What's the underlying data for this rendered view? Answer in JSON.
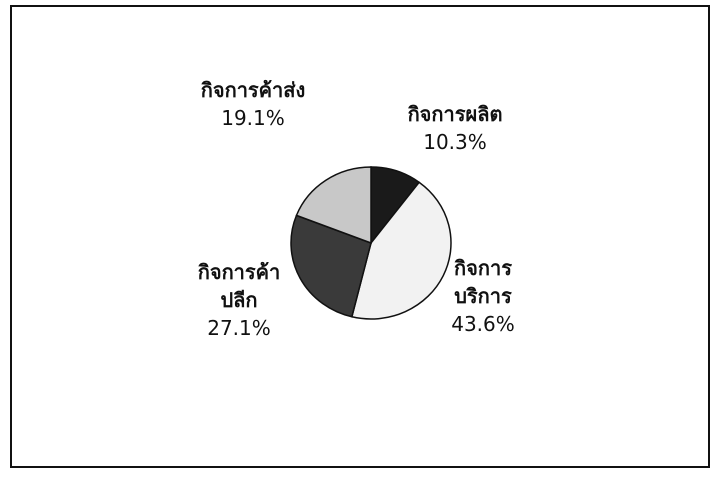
{
  "chart_data": {
    "type": "pie",
    "categories": [
      "กิจการผลิต",
      "กิจการบริการ",
      "กิจการค้าปลีก",
      "กิจการค้าส่ง"
    ],
    "values": [
      10.3,
      43.6,
      27.1,
      19.1
    ],
    "value_labels": [
      "10.3%",
      "43.6%",
      "27.1%",
      "19.1%"
    ],
    "colors": [
      "#1a1a1a",
      "#f2f2f2",
      "#3a3a3a",
      "#c8c8c8"
    ]
  }
}
